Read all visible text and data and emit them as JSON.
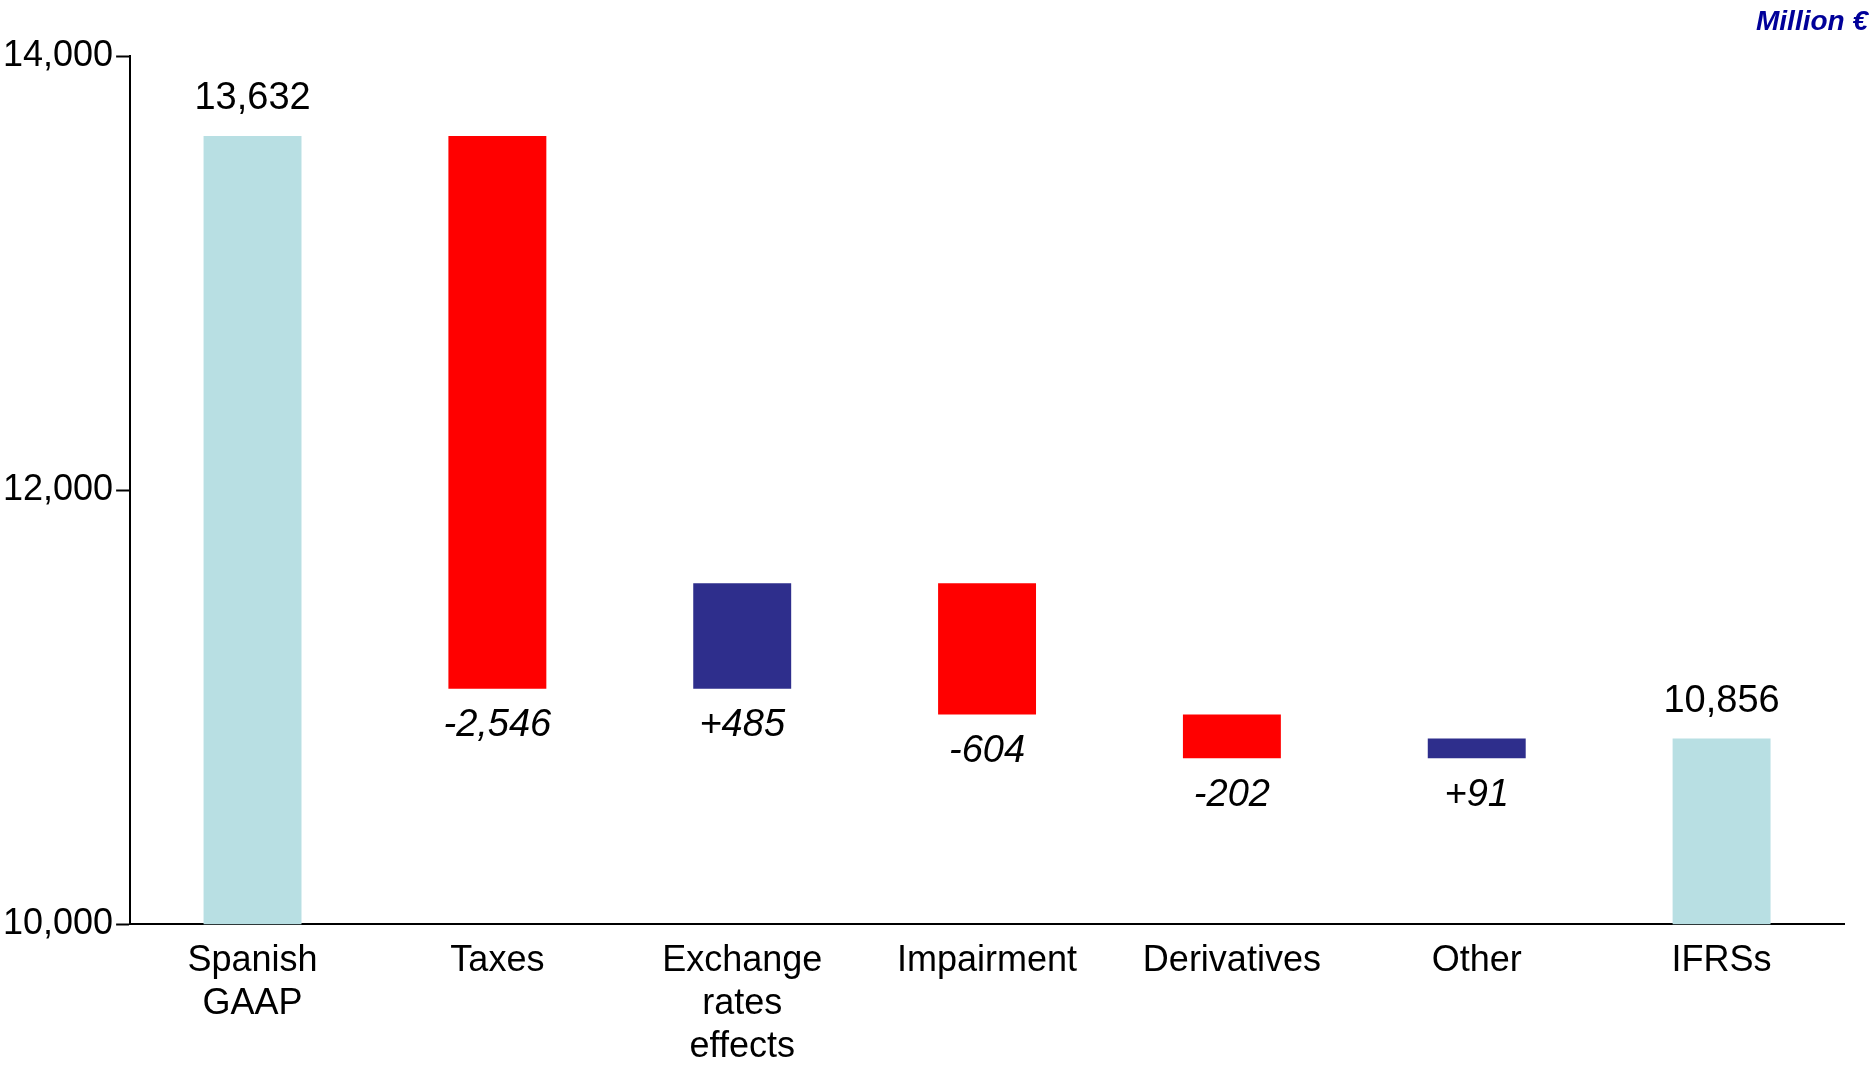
{
  "chart_data": {
    "type": "bar",
    "categories": [
      "Spanish GAAP",
      "Taxes",
      "Exchange rates effects",
      "Impairment",
      "Derivatives",
      "Other",
      "IFRSs"
    ],
    "base": [
      10000,
      13632,
      11086,
      11571,
      10967,
      10765,
      10000
    ],
    "values": [
      3632,
      -2546,
      485,
      -604,
      -202,
      91,
      856
    ],
    "colors": [
      "#b8dfe3",
      "#ff0000",
      "#2e2e8c",
      "#ff0000",
      "#ff0000",
      "#2e2e8c",
      "#b8dfe3"
    ],
    "value_labels": [
      null,
      "-2,546",
      "+485",
      "-604",
      "-202",
      "+91",
      null
    ],
    "annotations": [
      {
        "text": "13,632",
        "x": "Spanish GAAP",
        "y": 13632
      },
      {
        "text": "10,856",
        "x": "IFRSs",
        "y": 10856
      },
      "Million €"
    ],
    "ylim": [
      10000,
      14000
    ],
    "yticks": [
      {
        "value": 10000,
        "label": "10,000"
      },
      {
        "value": 12000,
        "label": "12,000"
      },
      {
        "value": 14000,
        "label": "14,000"
      }
    ],
    "grid": false,
    "legend": false
  }
}
